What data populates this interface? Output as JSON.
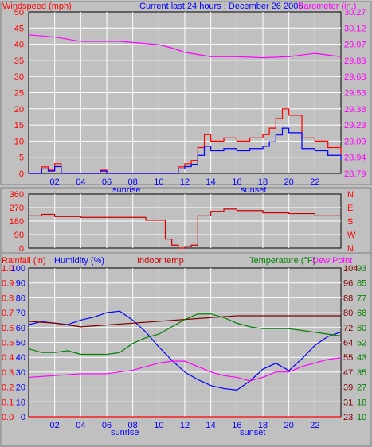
{
  "header": {
    "title": "Current last 24 hours : December 26 2005",
    "wind_label": "Windspeed (mph)",
    "baro_label": "Barometer (in.)"
  },
  "wind_scale_labels": [
    "0",
    "5",
    "10",
    "15",
    "20",
    "25",
    "30",
    "35",
    "40",
    "45",
    "50"
  ],
  "baro_scale_labels": [
    "28.79",
    "28.94",
    "29.09",
    "29.23",
    "29.38",
    "29.53",
    "29.68",
    "29.83",
    "29.97",
    "30.12",
    "30.27"
  ],
  "time_labels": [
    "02",
    "04",
    "06",
    "08",
    "10",
    "12",
    "14",
    "16",
    "18",
    "20",
    "22"
  ],
  "sunrise_label": "sunrise",
  "sunset_label": "sunset",
  "dir_scale_labels": [
    "0",
    "90",
    "180",
    "270",
    "360"
  ],
  "dir_letters": [
    "N",
    "E",
    "S",
    "W",
    "N"
  ],
  "bottom_header": {
    "rainfall": "Rainfall (in)",
    "humidity": "Humidity (%)",
    "indoor": "Indoor temp",
    "temperature": "Temperature (°F)",
    "dewpoint": "Dew Point"
  },
  "rain_scale_labels": [
    "0.0",
    "0.1",
    "0.2",
    "0.3",
    "0.4",
    "0.5",
    "0.6",
    "0.7",
    "0.8",
    "0.9",
    "1.0"
  ],
  "hum_scale_labels": [
    "0",
    "10",
    "20",
    "30",
    "40",
    "50",
    "60",
    "70",
    "80",
    "90",
    "100"
  ],
  "temp_scale_labels": [
    "23",
    "31",
    "39",
    "47",
    "55",
    "64",
    "72",
    "80",
    "88",
    "96",
    "104"
  ],
  "dew_scale_labels": [
    "10",
    "18",
    "27",
    "35",
    "43",
    "52",
    "60",
    "68",
    "77",
    "85",
    "93"
  ],
  "colors": {
    "wind_gust": "#ff0000",
    "wind_avg": "#0000ff",
    "barometer": "#ff00ff",
    "direction": "#cc0000",
    "humidity": "#0000ff",
    "indoor": "#800000",
    "temperature": "#008000",
    "dewpoint": "#ff00ff",
    "rainfall": "#ff0000"
  },
  "chart_data": [
    {
      "type": "line",
      "title": "Current last 24 hours : December 26 2005",
      "x_unit": "hour",
      "xlim": [
        0,
        24
      ],
      "series": [
        {
          "name": "Windspeed (mph)",
          "axis": "left",
          "ylim": [
            0,
            50
          ],
          "x": [
            0,
            1,
            1.5,
            2,
            2.5,
            3,
            4,
            5,
            5.5,
            6,
            7,
            8,
            9,
            10,
            11,
            11.5,
            12,
            12.5,
            13,
            13.5,
            14,
            15,
            16,
            17,
            18,
            18.5,
            19,
            19.5,
            20,
            21,
            22,
            23,
            24
          ],
          "y": [
            0,
            2,
            1,
            3,
            0,
            0,
            0,
            0,
            1,
            0,
            0,
            0,
            0,
            0,
            0,
            2,
            3,
            4,
            8,
            12,
            10,
            11,
            10,
            11,
            12,
            14,
            17,
            20,
            18,
            11,
            10,
            8,
            6
          ]
        },
        {
          "name": "Barometer (in.)",
          "axis": "right",
          "ylim": [
            28.79,
            30.27
          ],
          "x": [
            0,
            2,
            4,
            6,
            7,
            8,
            10,
            11,
            12,
            13,
            14,
            16,
            18,
            20,
            22,
            24
          ],
          "y": [
            30.06,
            30.04,
            30.0,
            30.0,
            30.0,
            29.99,
            29.97,
            29.94,
            29.9,
            29.88,
            29.86,
            29.86,
            29.85,
            29.86,
            29.89,
            29.86
          ]
        }
      ]
    },
    {
      "type": "line",
      "xlim": [
        0,
        24
      ],
      "ylim": [
        0,
        360
      ],
      "series": [
        {
          "name": "Wind direction",
          "x": [
            0,
            1,
            2,
            4,
            6,
            8,
            9,
            10,
            10.5,
            11,
            11.5,
            12,
            12.5,
            13,
            14,
            15,
            16,
            18,
            20,
            22,
            24
          ],
          "y": [
            215,
            225,
            210,
            205,
            205,
            205,
            185,
            185,
            60,
            20,
            0,
            10,
            20,
            215,
            245,
            260,
            250,
            235,
            230,
            215,
            215
          ]
        }
      ]
    },
    {
      "type": "line",
      "xlim": [
        0,
        24
      ],
      "series": [
        {
          "name": "Humidity (%)",
          "axis": "left",
          "ylim": [
            0,
            100
          ],
          "x": [
            0,
            1,
            2,
            3,
            4,
            5,
            6,
            7,
            8,
            9,
            10,
            11,
            12,
            13,
            14,
            15,
            16,
            17,
            18,
            19,
            20,
            21,
            22,
            23,
            24
          ],
          "y": [
            62,
            64,
            63,
            62,
            65,
            67,
            70,
            71,
            65,
            57,
            47,
            38,
            30,
            25,
            21,
            19,
            18,
            24,
            32,
            36,
            31,
            39,
            48,
            54,
            57
          ]
        },
        {
          "name": "Indoor temp",
          "axis": "right",
          "ylim": [
            23,
            104
          ],
          "x": [
            0,
            2,
            4,
            6,
            8,
            10,
            12,
            14,
            16,
            18,
            20,
            22,
            24
          ],
          "y": [
            75,
            74,
            72,
            73,
            74,
            75,
            76,
            77,
            78,
            78,
            78,
            78,
            78
          ]
        },
        {
          "name": "Temperature (°F)",
          "axis": "right",
          "ylim": [
            23,
            104
          ],
          "x": [
            0,
            1,
            2,
            3,
            4,
            5,
            6,
            7,
            8,
            9,
            10,
            11,
            12,
            13,
            14,
            15,
            16,
            17,
            18,
            19,
            20,
            21,
            22,
            23,
            24
          ],
          "y": [
            60,
            58,
            58,
            59,
            57,
            57,
            57,
            58,
            63,
            66,
            68,
            72,
            76,
            79,
            79,
            77,
            74,
            72,
            71,
            71,
            71,
            70,
            69,
            68,
            67
          ]
        },
        {
          "name": "Dew Point",
          "axis": "right",
          "ylim": [
            10,
            93
          ],
          "x": [
            0,
            2,
            4,
            6,
            8,
            10,
            11,
            12,
            13,
            14,
            15,
            16,
            17,
            18,
            19,
            20,
            21,
            22,
            23,
            24
          ],
          "y": [
            32,
            33,
            34,
            34,
            36,
            40,
            41,
            41,
            38,
            35,
            33,
            32,
            30,
            32,
            35,
            35,
            38,
            40,
            42,
            43
          ]
        },
        {
          "name": "Rainfall (in)",
          "axis": "left2",
          "ylim": [
            0,
            1.0
          ],
          "x": [
            0,
            24
          ],
          "y": [
            0.0,
            0.0
          ]
        }
      ]
    }
  ]
}
